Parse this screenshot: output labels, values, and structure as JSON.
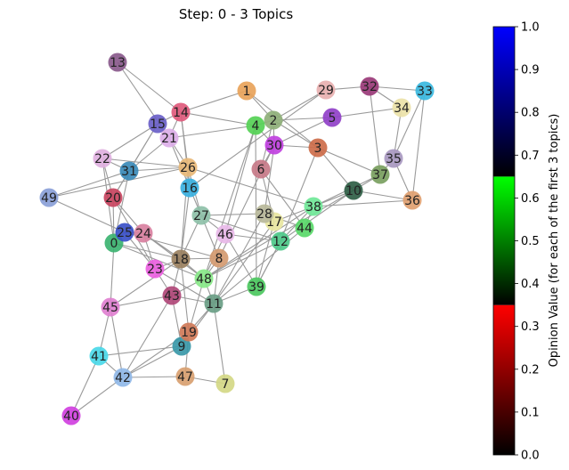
{
  "title": "Step: 0 - 3 Topics",
  "colorbar": {
    "label": "Opinion Value (for each of the first 3 topics)",
    "ticks": [
      "0.0",
      "0.1",
      "0.2",
      "0.3",
      "0.4",
      "0.5",
      "0.6",
      "0.7",
      "0.8",
      "0.9",
      "1.0"
    ],
    "segments": [
      {
        "name": "red-segment",
        "from": "#000000",
        "to": "#ff0000"
      },
      {
        "name": "green-segment",
        "from": "#000000",
        "to": "#00ff00"
      },
      {
        "name": "blue-segment",
        "from": "#000000",
        "to": "#0000ff"
      }
    ]
  },
  "nodes": [
    {
      "id": "0",
      "color": "#3cb371"
    },
    {
      "id": "1",
      "color": "#e8a35a"
    },
    {
      "id": "2",
      "color": "#8fb07a"
    },
    {
      "id": "3",
      "color": "#cd6d4a"
    },
    {
      "id": "4",
      "color": "#55d155"
    },
    {
      "id": "5",
      "color": "#9040c8"
    },
    {
      "id": "6",
      "color": "#c77a88"
    },
    {
      "id": "7",
      "color": "#d4d886"
    },
    {
      "id": "8",
      "color": "#d49a70"
    },
    {
      "id": "9",
      "color": "#3a98a8"
    },
    {
      "id": "10",
      "color": "#2f5e45"
    },
    {
      "id": "11",
      "color": "#6a9e86"
    },
    {
      "id": "12",
      "color": "#4ec98a"
    },
    {
      "id": "13",
      "color": "#8a5a8c"
    },
    {
      "id": "14",
      "color": "#e05a7c"
    },
    {
      "id": "15",
      "color": "#6a60c8"
    },
    {
      "id": "16",
      "color": "#3ab0e0"
    },
    {
      "id": "17",
      "color": "#e8e6a0"
    },
    {
      "id": "18",
      "color": "#9a8060"
    },
    {
      "id": "19",
      "color": "#d07a58"
    },
    {
      "id": "20",
      "color": "#c84460"
    },
    {
      "id": "21",
      "color": "#dcaee8"
    },
    {
      "id": "22",
      "color": "#e0b0e0"
    },
    {
      "id": "23",
      "color": "#ea60e0"
    },
    {
      "id": "24",
      "color": "#d880a0"
    },
    {
      "id": "25",
      "color": "#3a50c8"
    },
    {
      "id": "26",
      "color": "#e8b878"
    },
    {
      "id": "27",
      "color": "#8ec0a8"
    },
    {
      "id": "28",
      "color": "#b8b89a"
    },
    {
      "id": "29",
      "color": "#e8b0b0"
    },
    {
      "id": "30",
      "color": "#c040e0"
    },
    {
      "id": "31",
      "color": "#3a8ab8"
    },
    {
      "id": "32",
      "color": "#9a3a78"
    },
    {
      "id": "33",
      "color": "#3ab8e0"
    },
    {
      "id": "34",
      "color": "#ece2a8"
    },
    {
      "id": "35",
      "color": "#a898c0"
    },
    {
      "id": "36",
      "color": "#e0a070"
    },
    {
      "id": "37",
      "color": "#7aa060"
    },
    {
      "id": "38",
      "color": "#70e898"
    },
    {
      "id": "39",
      "color": "#4cc860"
    },
    {
      "id": "40",
      "color": "#d040e0"
    },
    {
      "id": "41",
      "color": "#4ad8e8"
    },
    {
      "id": "42",
      "color": "#90b8e8"
    },
    {
      "id": "43",
      "color": "#b04878"
    },
    {
      "id": "44",
      "color": "#58d868"
    },
    {
      "id": "45",
      "color": "#e080d0"
    },
    {
      "id": "46",
      "color": "#e8b8e8"
    },
    {
      "id": "47",
      "color": "#d8a070"
    },
    {
      "id": "48",
      "color": "#88e888"
    },
    {
      "id": "49",
      "color": "#8aa0d8"
    }
  ],
  "edges": [
    [
      "13",
      "14"
    ],
    [
      "13",
      "21"
    ],
    [
      "14",
      "1"
    ],
    [
      "14",
      "4"
    ],
    [
      "14",
      "15"
    ],
    [
      "14",
      "16"
    ],
    [
      "14",
      "26"
    ],
    [
      "14",
      "21"
    ],
    [
      "1",
      "3"
    ],
    [
      "1",
      "2"
    ],
    [
      "2",
      "4"
    ],
    [
      "2",
      "5"
    ],
    [
      "2",
      "29"
    ],
    [
      "2",
      "30"
    ],
    [
      "2",
      "6"
    ],
    [
      "2",
      "3"
    ],
    [
      "29",
      "32"
    ],
    [
      "29",
      "16"
    ],
    [
      "32",
      "33"
    ],
    [
      "32",
      "34"
    ],
    [
      "32",
      "37"
    ],
    [
      "33",
      "35"
    ],
    [
      "33",
      "36"
    ],
    [
      "34",
      "35"
    ],
    [
      "5",
      "34"
    ],
    [
      "5",
      "30"
    ],
    [
      "3",
      "10"
    ],
    [
      "3",
      "30"
    ],
    [
      "3",
      "37"
    ],
    [
      "3",
      "12"
    ],
    [
      "35",
      "37"
    ],
    [
      "35",
      "36"
    ],
    [
      "37",
      "10"
    ],
    [
      "37",
      "38"
    ],
    [
      "10",
      "36"
    ],
    [
      "10",
      "38"
    ],
    [
      "10",
      "48"
    ],
    [
      "10",
      "12"
    ],
    [
      "36",
      "38"
    ],
    [
      "15",
      "21"
    ],
    [
      "15",
      "31"
    ],
    [
      "15",
      "22"
    ],
    [
      "15",
      "20"
    ],
    [
      "21",
      "4"
    ],
    [
      "21",
      "26"
    ],
    [
      "21",
      "31"
    ],
    [
      "21",
      "16"
    ],
    [
      "22",
      "31"
    ],
    [
      "22",
      "26"
    ],
    [
      "22",
      "20"
    ],
    [
      "22",
      "0"
    ],
    [
      "31",
      "49"
    ],
    [
      "31",
      "26"
    ],
    [
      "31",
      "20"
    ],
    [
      "31",
      "0"
    ],
    [
      "49",
      "25"
    ],
    [
      "49",
      "26"
    ],
    [
      "26",
      "16"
    ],
    [
      "26",
      "27"
    ],
    [
      "26",
      "38"
    ],
    [
      "26",
      "18"
    ],
    [
      "16",
      "27"
    ],
    [
      "16",
      "18"
    ],
    [
      "20",
      "0"
    ],
    [
      "20",
      "23"
    ],
    [
      "20",
      "24"
    ],
    [
      "0",
      "25"
    ],
    [
      "0",
      "45"
    ],
    [
      "0",
      "48"
    ],
    [
      "0",
      "18"
    ],
    [
      "25",
      "24"
    ],
    [
      "25",
      "23"
    ],
    [
      "25",
      "8"
    ],
    [
      "24",
      "18"
    ],
    [
      "24",
      "23"
    ],
    [
      "24",
      "48"
    ],
    [
      "27",
      "28"
    ],
    [
      "27",
      "46"
    ],
    [
      "27",
      "8"
    ],
    [
      "27",
      "18"
    ],
    [
      "27",
      "12"
    ],
    [
      "28",
      "17"
    ],
    [
      "28",
      "44"
    ],
    [
      "28",
      "11"
    ],
    [
      "28",
      "30"
    ],
    [
      "17",
      "38"
    ],
    [
      "17",
      "39"
    ],
    [
      "17",
      "11"
    ],
    [
      "17",
      "6"
    ],
    [
      "46",
      "4"
    ],
    [
      "46",
      "12"
    ],
    [
      "46",
      "48"
    ],
    [
      "46",
      "39"
    ],
    [
      "38",
      "44"
    ],
    [
      "38",
      "48"
    ],
    [
      "38",
      "12"
    ],
    [
      "44",
      "11"
    ],
    [
      "12",
      "48"
    ],
    [
      "12",
      "39"
    ],
    [
      "18",
      "8"
    ],
    [
      "18",
      "48"
    ],
    [
      "18",
      "43"
    ],
    [
      "18",
      "19"
    ],
    [
      "18",
      "23"
    ],
    [
      "8",
      "48"
    ],
    [
      "8",
      "11"
    ],
    [
      "8",
      "30"
    ],
    [
      "23",
      "43"
    ],
    [
      "23",
      "11"
    ],
    [
      "48",
      "11"
    ],
    [
      "48",
      "43"
    ],
    [
      "48",
      "19"
    ],
    [
      "43",
      "45"
    ],
    [
      "43",
      "11"
    ],
    [
      "43",
      "42"
    ],
    [
      "43",
      "9"
    ],
    [
      "45",
      "41"
    ],
    [
      "45",
      "42"
    ],
    [
      "45",
      "18"
    ],
    [
      "11",
      "19"
    ],
    [
      "11",
      "9"
    ],
    [
      "11",
      "7"
    ],
    [
      "19",
      "9"
    ],
    [
      "19",
      "42"
    ],
    [
      "19",
      "47"
    ],
    [
      "9",
      "41"
    ],
    [
      "9",
      "42"
    ],
    [
      "41",
      "40"
    ],
    [
      "41",
      "42"
    ],
    [
      "42",
      "40"
    ],
    [
      "42",
      "47"
    ],
    [
      "47",
      "7"
    ],
    [
      "6",
      "30"
    ],
    [
      "30",
      "4"
    ],
    [
      "4",
      "39"
    ],
    [
      "4",
      "48"
    ],
    [
      "6",
      "44"
    ],
    [
      "39",
      "11"
    ],
    [
      "39",
      "12"
    ]
  ]
}
